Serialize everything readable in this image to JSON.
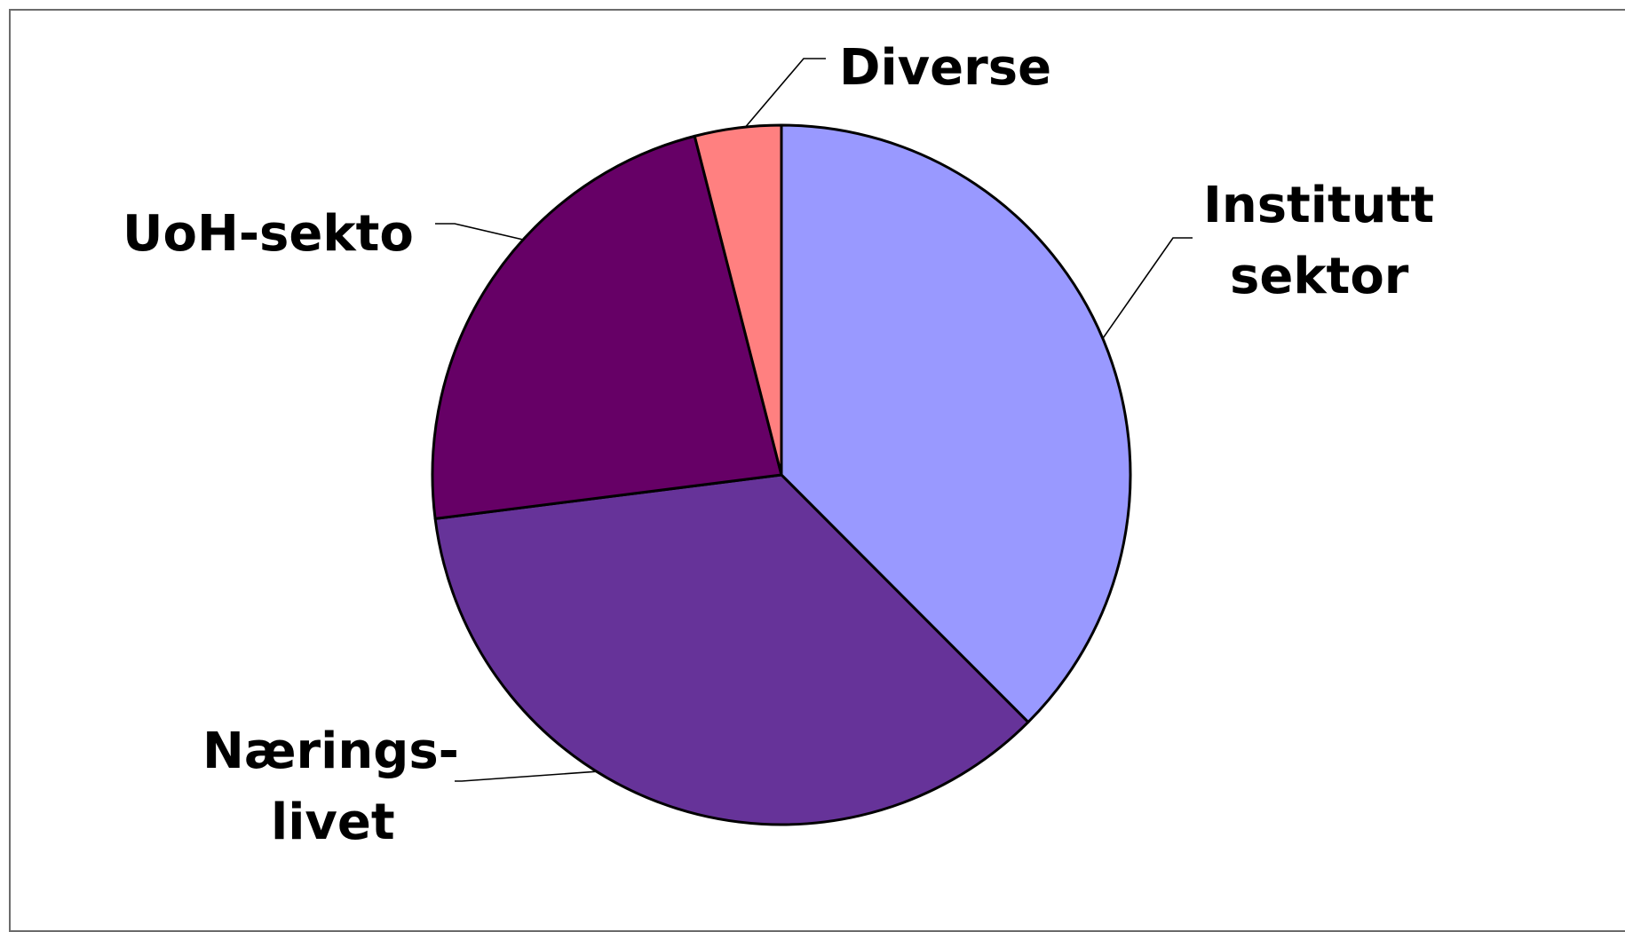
{
  "chart_data": {
    "type": "pie",
    "slices": [
      {
        "label_lines": [
          "Institutt",
          "sektor"
        ],
        "value": 37.5,
        "color": "#9999FF"
      },
      {
        "label_lines": [
          "Nærings-",
          "livet"
        ],
        "value": 35.5,
        "color": "#663399"
      },
      {
        "label_lines": [
          "UoH-sekto"
        ],
        "value": 23.0,
        "color": "#660066"
      },
      {
        "label_lines": [
          "Diverse"
        ],
        "value": 4.0,
        "color": "#FF8080"
      }
    ],
    "start_angle": "12 o'clock",
    "direction": "clockwise"
  }
}
